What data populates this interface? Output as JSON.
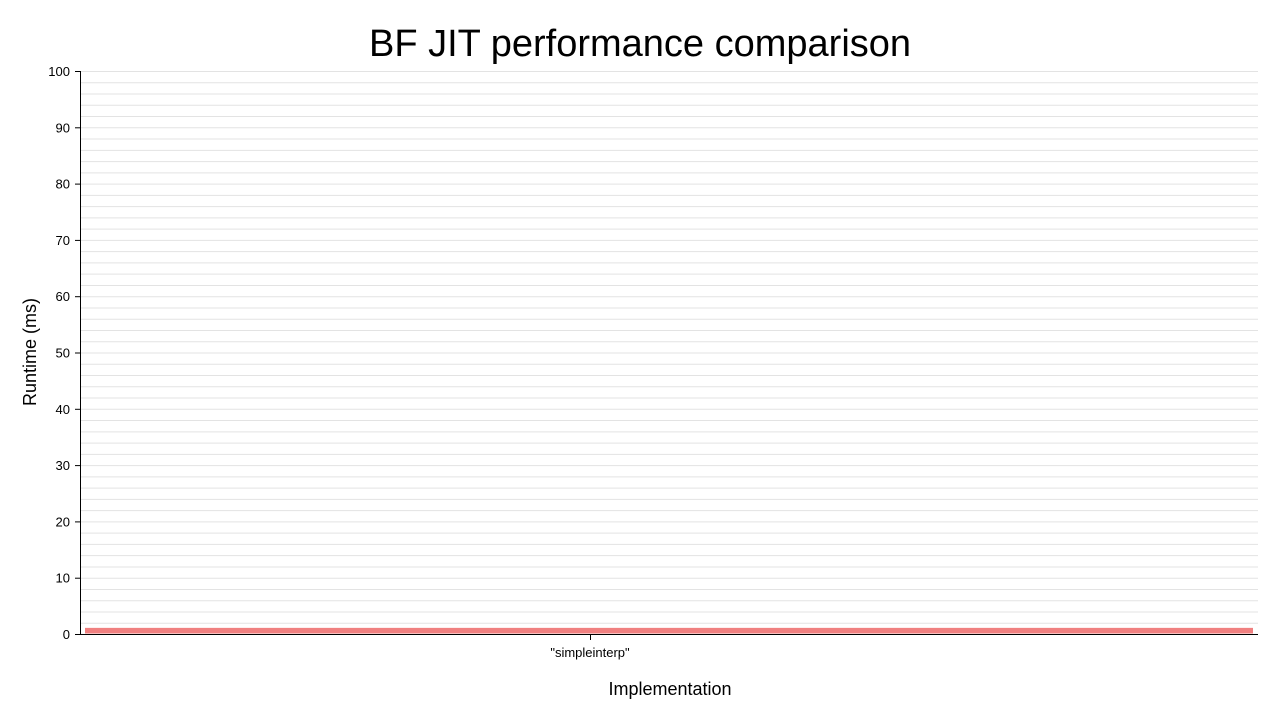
{
  "chart_data": {
    "type": "bar",
    "title": "BF JIT performance comparison",
    "xlabel": "Implementation",
    "ylabel": "Runtime (ms)",
    "categories": [
      "\"simpleinterp\""
    ],
    "values": [
      1
    ],
    "ylim": [
      0,
      100
    ],
    "yticks": [
      0,
      10,
      20,
      30,
      40,
      50,
      60,
      70,
      80,
      90,
      100
    ],
    "y_ticks_labels": [
      "0",
      "10",
      "20",
      "30",
      "40",
      "50",
      "60",
      "70",
      "80",
      "90",
      "100"
    ],
    "minor_grid_step": 2,
    "grid": true,
    "legend": "none",
    "colors": {
      "bar": "#f08080",
      "grid": "#e3e3e3",
      "axis": "#000000"
    }
  }
}
